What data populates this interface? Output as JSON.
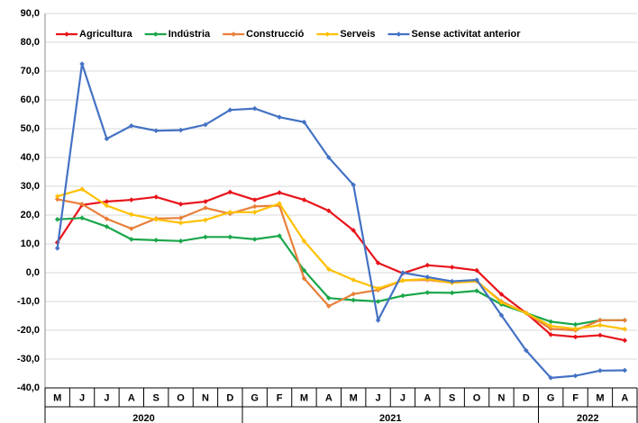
{
  "chart_data": {
    "type": "line",
    "categories": [
      "M",
      "J",
      "J",
      "A",
      "S",
      "O",
      "N",
      "D",
      "G",
      "F",
      "M",
      "A",
      "M",
      "J",
      "J",
      "A",
      "S",
      "O",
      "N",
      "D",
      "G",
      "F",
      "M",
      "A"
    ],
    "year_groups": [
      {
        "label": "2020",
        "span": 8
      },
      {
        "label": "2021",
        "span": 12
      },
      {
        "label": "2022",
        "span": 4
      }
    ],
    "ylim": [
      -40,
      90
    ],
    "yticks": [
      {
        "value": -40,
        "label": "-40,0"
      },
      {
        "value": -30,
        "label": "-30,0"
      },
      {
        "value": -20,
        "label": "-20,0"
      },
      {
        "value": -10,
        "label": "-10,0"
      },
      {
        "value": 0,
        "label": "0,0"
      },
      {
        "value": 10,
        "label": "10,0"
      },
      {
        "value": 20,
        "label": "20,0"
      },
      {
        "value": 30,
        "label": "30,0"
      },
      {
        "value": 40,
        "label": "40,0"
      },
      {
        "value": 50,
        "label": "50,0"
      },
      {
        "value": 60,
        "label": "60,0"
      },
      {
        "value": 70,
        "label": "70,0"
      },
      {
        "value": 80,
        "label": "80,0"
      },
      {
        "value": 90,
        "label": "90,0"
      }
    ],
    "grid": true,
    "legend": "top-left",
    "series": [
      {
        "name": "Agricultura",
        "color": "#e8141b",
        "values": [
          10.5,
          23.5,
          24.7,
          25.3,
          26.3,
          23.8,
          24.7,
          28.0,
          25.3,
          27.8,
          25.3,
          21.5,
          14.7,
          3.4,
          -0.2,
          2.6,
          1.9,
          0.8,
          -7.5,
          -14.0,
          -21.5,
          -22.3,
          -21.7,
          -23.5
        ]
      },
      {
        "name": "Indústria",
        "color": "#1aa64a",
        "values": [
          18.5,
          19.0,
          16.0,
          11.6,
          11.3,
          11.0,
          12.4,
          12.4,
          11.6,
          12.8,
          0.8,
          -8.8,
          -9.5,
          -10.0,
          -8.0,
          -6.9,
          -7.0,
          -6.3,
          -11.0,
          -14.0,
          -17.0,
          -18.0,
          -16.5,
          -16.5
        ]
      },
      {
        "name": "Construcció",
        "color": "#e8803a",
        "values": [
          25.5,
          23.8,
          18.7,
          15.3,
          18.8,
          19.0,
          22.5,
          20.5,
          23.0,
          23.3,
          -2.0,
          -11.6,
          -7.4,
          -6.0,
          -2.7,
          -2.5,
          -3.5,
          -3.0,
          -10.0,
          -14.0,
          -19.5,
          -20.0,
          -16.5,
          -16.5
        ]
      },
      {
        "name": "Serveis",
        "color": "#ffc000",
        "values": [
          26.5,
          29.0,
          23.3,
          20.2,
          18.5,
          17.3,
          18.3,
          21.0,
          21.0,
          24.0,
          11.0,
          1.2,
          -2.5,
          -5.5,
          -2.7,
          -2.2,
          -3.5,
          -2.9,
          -10.3,
          -14.0,
          -18.5,
          -19.5,
          -18.2,
          -19.6
        ]
      },
      {
        "name": "Sense activitat anterior",
        "color": "#4472c4",
        "values": [
          8.5,
          72.5,
          46.5,
          51.0,
          49.3,
          49.5,
          51.4,
          56.5,
          57.0,
          54.0,
          52.3,
          40.0,
          30.5,
          -16.5,
          0.0,
          -1.5,
          -3.0,
          -2.5,
          -14.8,
          -27.0,
          -36.5,
          -35.8,
          -34.0,
          -33.9
        ]
      }
    ]
  }
}
